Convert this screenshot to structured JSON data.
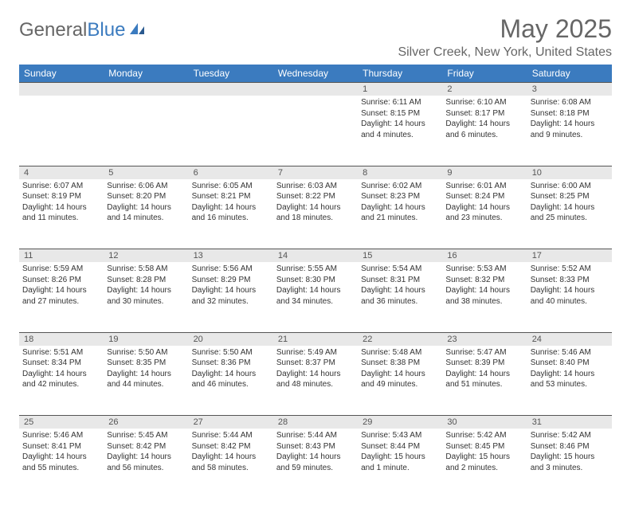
{
  "logo": {
    "part1": "General",
    "part2": "Blue"
  },
  "title": "May 2025",
  "location": "Silver Creek, New York, United States",
  "header_bg": "#3b7bbf",
  "header_text": "#ffffff",
  "daynum_bg": "#e8e8e8",
  "border_color": "#555555",
  "day_names": [
    "Sunday",
    "Monday",
    "Tuesday",
    "Wednesday",
    "Thursday",
    "Friday",
    "Saturday"
  ],
  "weeks": [
    [
      {
        "n": "",
        "sr": "",
        "ss": "",
        "dl": ""
      },
      {
        "n": "",
        "sr": "",
        "ss": "",
        "dl": ""
      },
      {
        "n": "",
        "sr": "",
        "ss": "",
        "dl": ""
      },
      {
        "n": "",
        "sr": "",
        "ss": "",
        "dl": ""
      },
      {
        "n": "1",
        "sr": "Sunrise: 6:11 AM",
        "ss": "Sunset: 8:15 PM",
        "dl": "Daylight: 14 hours and 4 minutes."
      },
      {
        "n": "2",
        "sr": "Sunrise: 6:10 AM",
        "ss": "Sunset: 8:17 PM",
        "dl": "Daylight: 14 hours and 6 minutes."
      },
      {
        "n": "3",
        "sr": "Sunrise: 6:08 AM",
        "ss": "Sunset: 8:18 PM",
        "dl": "Daylight: 14 hours and 9 minutes."
      }
    ],
    [
      {
        "n": "4",
        "sr": "Sunrise: 6:07 AM",
        "ss": "Sunset: 8:19 PM",
        "dl": "Daylight: 14 hours and 11 minutes."
      },
      {
        "n": "5",
        "sr": "Sunrise: 6:06 AM",
        "ss": "Sunset: 8:20 PM",
        "dl": "Daylight: 14 hours and 14 minutes."
      },
      {
        "n": "6",
        "sr": "Sunrise: 6:05 AM",
        "ss": "Sunset: 8:21 PM",
        "dl": "Daylight: 14 hours and 16 minutes."
      },
      {
        "n": "7",
        "sr": "Sunrise: 6:03 AM",
        "ss": "Sunset: 8:22 PM",
        "dl": "Daylight: 14 hours and 18 minutes."
      },
      {
        "n": "8",
        "sr": "Sunrise: 6:02 AM",
        "ss": "Sunset: 8:23 PM",
        "dl": "Daylight: 14 hours and 21 minutes."
      },
      {
        "n": "9",
        "sr": "Sunrise: 6:01 AM",
        "ss": "Sunset: 8:24 PM",
        "dl": "Daylight: 14 hours and 23 minutes."
      },
      {
        "n": "10",
        "sr": "Sunrise: 6:00 AM",
        "ss": "Sunset: 8:25 PM",
        "dl": "Daylight: 14 hours and 25 minutes."
      }
    ],
    [
      {
        "n": "11",
        "sr": "Sunrise: 5:59 AM",
        "ss": "Sunset: 8:26 PM",
        "dl": "Daylight: 14 hours and 27 minutes."
      },
      {
        "n": "12",
        "sr": "Sunrise: 5:58 AM",
        "ss": "Sunset: 8:28 PM",
        "dl": "Daylight: 14 hours and 30 minutes."
      },
      {
        "n": "13",
        "sr": "Sunrise: 5:56 AM",
        "ss": "Sunset: 8:29 PM",
        "dl": "Daylight: 14 hours and 32 minutes."
      },
      {
        "n": "14",
        "sr": "Sunrise: 5:55 AM",
        "ss": "Sunset: 8:30 PM",
        "dl": "Daylight: 14 hours and 34 minutes."
      },
      {
        "n": "15",
        "sr": "Sunrise: 5:54 AM",
        "ss": "Sunset: 8:31 PM",
        "dl": "Daylight: 14 hours and 36 minutes."
      },
      {
        "n": "16",
        "sr": "Sunrise: 5:53 AM",
        "ss": "Sunset: 8:32 PM",
        "dl": "Daylight: 14 hours and 38 minutes."
      },
      {
        "n": "17",
        "sr": "Sunrise: 5:52 AM",
        "ss": "Sunset: 8:33 PM",
        "dl": "Daylight: 14 hours and 40 minutes."
      }
    ],
    [
      {
        "n": "18",
        "sr": "Sunrise: 5:51 AM",
        "ss": "Sunset: 8:34 PM",
        "dl": "Daylight: 14 hours and 42 minutes."
      },
      {
        "n": "19",
        "sr": "Sunrise: 5:50 AM",
        "ss": "Sunset: 8:35 PM",
        "dl": "Daylight: 14 hours and 44 minutes."
      },
      {
        "n": "20",
        "sr": "Sunrise: 5:50 AM",
        "ss": "Sunset: 8:36 PM",
        "dl": "Daylight: 14 hours and 46 minutes."
      },
      {
        "n": "21",
        "sr": "Sunrise: 5:49 AM",
        "ss": "Sunset: 8:37 PM",
        "dl": "Daylight: 14 hours and 48 minutes."
      },
      {
        "n": "22",
        "sr": "Sunrise: 5:48 AM",
        "ss": "Sunset: 8:38 PM",
        "dl": "Daylight: 14 hours and 49 minutes."
      },
      {
        "n": "23",
        "sr": "Sunrise: 5:47 AM",
        "ss": "Sunset: 8:39 PM",
        "dl": "Daylight: 14 hours and 51 minutes."
      },
      {
        "n": "24",
        "sr": "Sunrise: 5:46 AM",
        "ss": "Sunset: 8:40 PM",
        "dl": "Daylight: 14 hours and 53 minutes."
      }
    ],
    [
      {
        "n": "25",
        "sr": "Sunrise: 5:46 AM",
        "ss": "Sunset: 8:41 PM",
        "dl": "Daylight: 14 hours and 55 minutes."
      },
      {
        "n": "26",
        "sr": "Sunrise: 5:45 AM",
        "ss": "Sunset: 8:42 PM",
        "dl": "Daylight: 14 hours and 56 minutes."
      },
      {
        "n": "27",
        "sr": "Sunrise: 5:44 AM",
        "ss": "Sunset: 8:42 PM",
        "dl": "Daylight: 14 hours and 58 minutes."
      },
      {
        "n": "28",
        "sr": "Sunrise: 5:44 AM",
        "ss": "Sunset: 8:43 PM",
        "dl": "Daylight: 14 hours and 59 minutes."
      },
      {
        "n": "29",
        "sr": "Sunrise: 5:43 AM",
        "ss": "Sunset: 8:44 PM",
        "dl": "Daylight: 15 hours and 1 minute."
      },
      {
        "n": "30",
        "sr": "Sunrise: 5:42 AM",
        "ss": "Sunset: 8:45 PM",
        "dl": "Daylight: 15 hours and 2 minutes."
      },
      {
        "n": "31",
        "sr": "Sunrise: 5:42 AM",
        "ss": "Sunset: 8:46 PM",
        "dl": "Daylight: 15 hours and 3 minutes."
      }
    ]
  ]
}
